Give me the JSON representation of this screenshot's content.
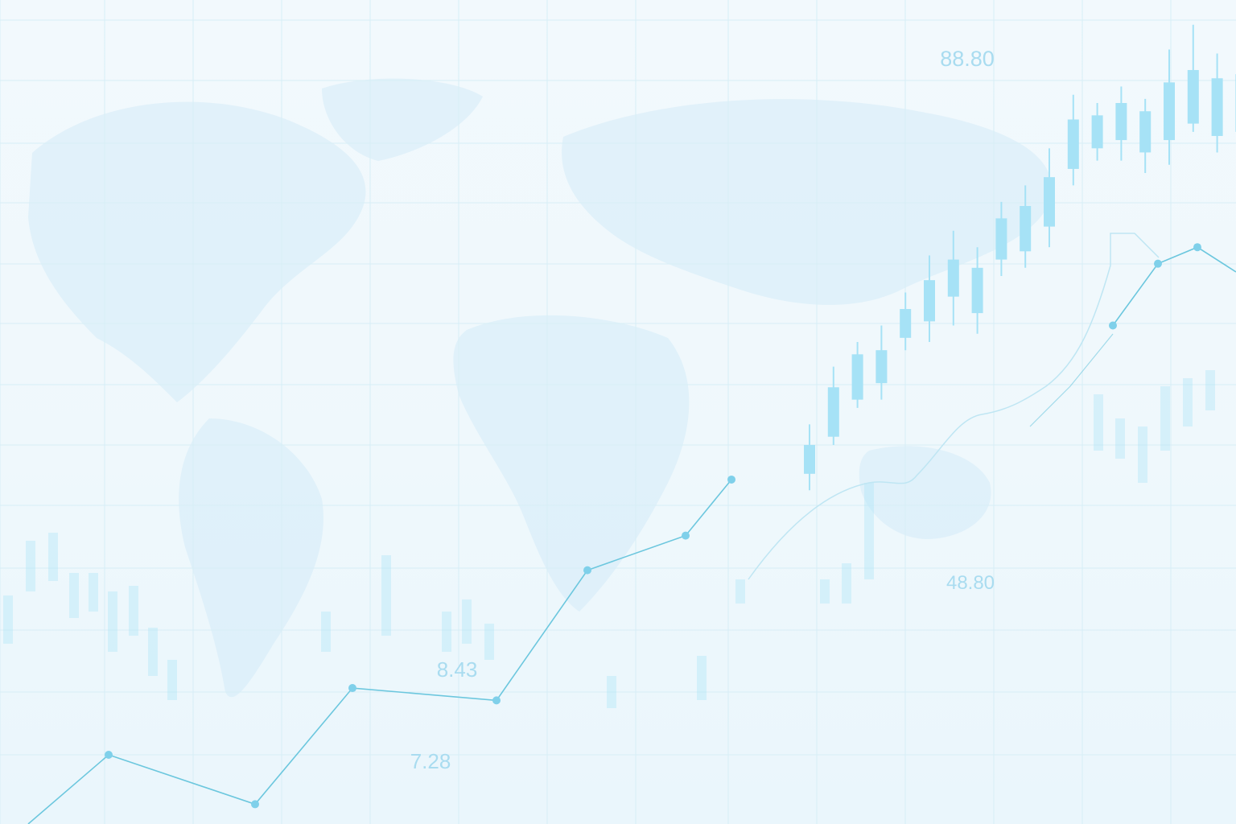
{
  "colors": {
    "background": "#f2f9fd",
    "grid": "#d7eef6",
    "line": "#6cc7de",
    "marker": "#7fd0ea",
    "candle": "#a6e2f6",
    "label": "#a9dcf0",
    "map": "#d4ebf8"
  },
  "labels": [
    {
      "text": "88.80"
    },
    {
      "text": "48.80"
    },
    {
      "text": "8.43"
    },
    {
      "text": "7.28"
    }
  ],
  "chart_data": [
    {
      "type": "line",
      "title": "",
      "xlabel": "",
      "ylabel": "",
      "grid": true,
      "x": [
        0,
        1,
        2,
        3,
        4,
        5,
        6,
        7,
        8,
        9,
        10,
        11,
        12
      ],
      "series": [
        {
          "values": [
            0.0,
            8.4,
            2.4,
            16.5,
            15.0,
            30.8,
            35.0,
            41.8,
            60.5,
            68.0,
            70.0,
            67.0,
            71.0
          ]
        }
      ],
      "ylim": [
        0,
        100
      ]
    },
    {
      "type": "candlestick",
      "title": "",
      "xlabel": "",
      "ylabel": "",
      "grid": true,
      "candles": [
        {
          "open": 42.5,
          "close": 46.0,
          "high": 48.5,
          "low": 40.5
        },
        {
          "open": 47.0,
          "close": 53.0,
          "high": 55.5,
          "low": 46.0
        },
        {
          "open": 51.5,
          "close": 57.0,
          "high": 58.5,
          "low": 50.5
        },
        {
          "open": 53.5,
          "close": 57.5,
          "high": 60.5,
          "low": 51.5
        },
        {
          "open": 59.0,
          "close": 62.5,
          "high": 64.5,
          "low": 57.5
        },
        {
          "open": 61.0,
          "close": 66.0,
          "high": 69.0,
          "low": 58.5
        },
        {
          "open": 64.0,
          "close": 68.5,
          "high": 72.0,
          "low": 60.5
        },
        {
          "open": 62.0,
          "close": 67.5,
          "high": 70.0,
          "low": 59.5
        },
        {
          "open": 68.5,
          "close": 73.5,
          "high": 75.5,
          "low": 66.5
        },
        {
          "open": 69.5,
          "close": 75.0,
          "high": 77.5,
          "low": 67.5
        },
        {
          "open": 72.5,
          "close": 78.5,
          "high": 82.0,
          "low": 70.0
        },
        {
          "open": 79.5,
          "close": 85.5,
          "high": 88.5,
          "low": 77.5
        },
        {
          "open": 82.0,
          "close": 86.0,
          "high": 87.5,
          "low": 80.5
        },
        {
          "open": 83.0,
          "close": 87.5,
          "high": 89.5,
          "low": 80.5
        },
        {
          "open": 81.5,
          "close": 86.5,
          "high": 88.0,
          "low": 79.0
        },
        {
          "open": 83.0,
          "close": 90.0,
          "high": 94.0,
          "low": 80.0
        },
        {
          "open": 85.0,
          "close": 91.5,
          "high": 97.0,
          "low": 84.0
        },
        {
          "open": 83.5,
          "close": 90.5,
          "high": 93.5,
          "low": 81.5
        },
        {
          "open": 84.0,
          "close": 91.0,
          "high": 94.5,
          "low": 82.0
        }
      ],
      "ylim": [
        0,
        100
      ]
    }
  ]
}
